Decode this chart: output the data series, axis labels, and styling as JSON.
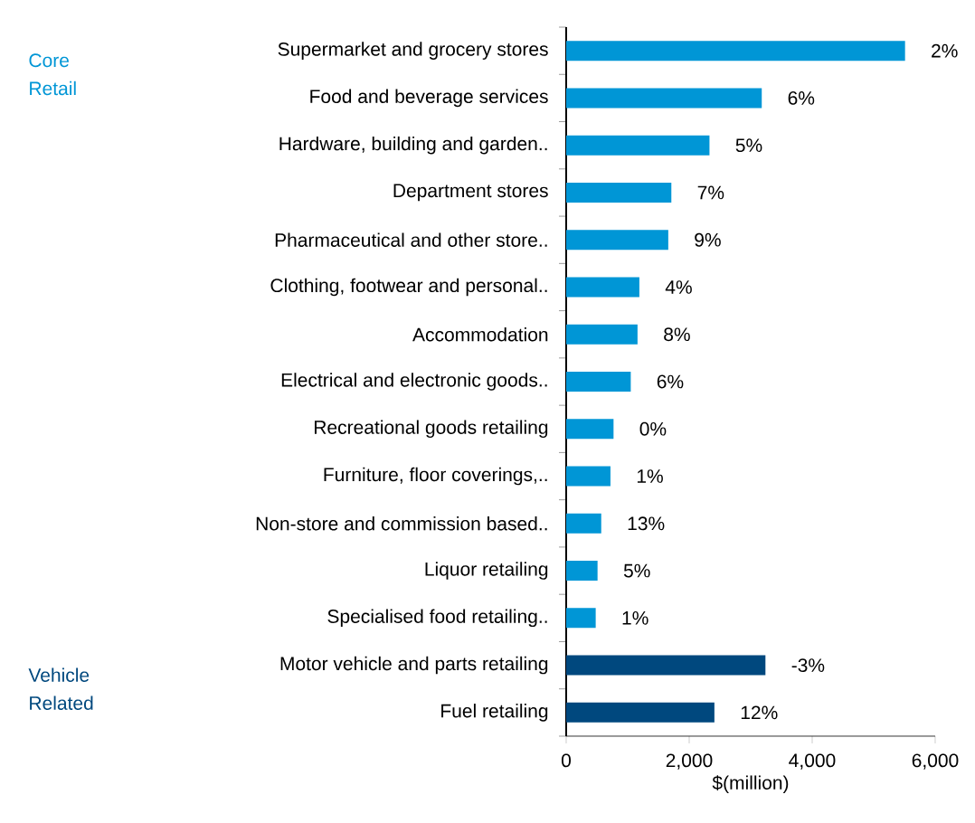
{
  "chart_data": {
    "type": "bar",
    "orientation": "horizontal",
    "xlabel": "$(million)",
    "categories": [
      "Supermarket and grocery stores",
      "Food and beverage services",
      "Hardware, building and garden..",
      "Department stores",
      "Pharmaceutical and other store..",
      "Clothing, footwear and personal..",
      "Accommodation",
      "Electrical and electronic goods..",
      "Recreational goods retailing",
      "Furniture, floor coverings,..",
      "Non-store and commission based..",
      "Liquor retailing",
      "Specialised food retailing..",
      "Motor vehicle and parts retailing",
      "Fuel retailing"
    ],
    "series": [
      {
        "name": "Core Retail",
        "color": "#0096d6",
        "values": [
          5510,
          3180,
          2330,
          1710,
          1660,
          1190,
          1160,
          1050,
          770,
          720,
          570,
          510,
          480,
          null,
          null
        ]
      },
      {
        "name": "Vehicle Related",
        "color": "#00487e",
        "values": [
          null,
          null,
          null,
          null,
          null,
          null,
          null,
          null,
          null,
          null,
          null,
          null,
          null,
          3240,
          2410
        ]
      }
    ],
    "annotations": [
      {
        "text": "2%",
        "x": 5510,
        "y": "Supermarket and grocery stores"
      },
      {
        "text": "6%",
        "x": 3180,
        "y": "Food and beverage services"
      },
      {
        "text": "5%",
        "x": 2330,
        "y": "Hardware, building and garden.."
      },
      {
        "text": "7%",
        "x": 1710,
        "y": "Department stores"
      },
      {
        "text": "9%",
        "x": 1660,
        "y": "Pharmaceutical and other store.."
      },
      {
        "text": "4%",
        "x": 1190,
        "y": "Clothing, footwear and personal.."
      },
      {
        "text": "8%",
        "x": 1160,
        "y": "Accommodation"
      },
      {
        "text": "6%",
        "x": 1050,
        "y": "Electrical and electronic goods.."
      },
      {
        "text": "0%",
        "x": 770,
        "y": "Recreational goods retailing"
      },
      {
        "text": "1%",
        "x": 720,
        "y": "Furniture, floor coverings,.."
      },
      {
        "text": "13%",
        "x": 570,
        "y": "Non-store and commission based.."
      },
      {
        "text": "5%",
        "x": 510,
        "y": "Liquor retailing"
      },
      {
        "text": "1%",
        "x": 480,
        "y": "Specialised food retailing.."
      },
      {
        "text": "-3%",
        "x": 3240,
        "y": "Motor vehicle and parts retailing"
      },
      {
        "text": "12%",
        "x": 2410,
        "y": "Fuel retailing"
      }
    ],
    "xlim": [
      0,
      6000
    ],
    "xticks": [
      0,
      {
        "value": 2000,
        "label": "2,000"
      },
      {
        "value": 4000,
        "label": "4,000"
      },
      {
        "value": 6000,
        "label": "6,000"
      }
    ],
    "legend": false,
    "grid": false
  }
}
